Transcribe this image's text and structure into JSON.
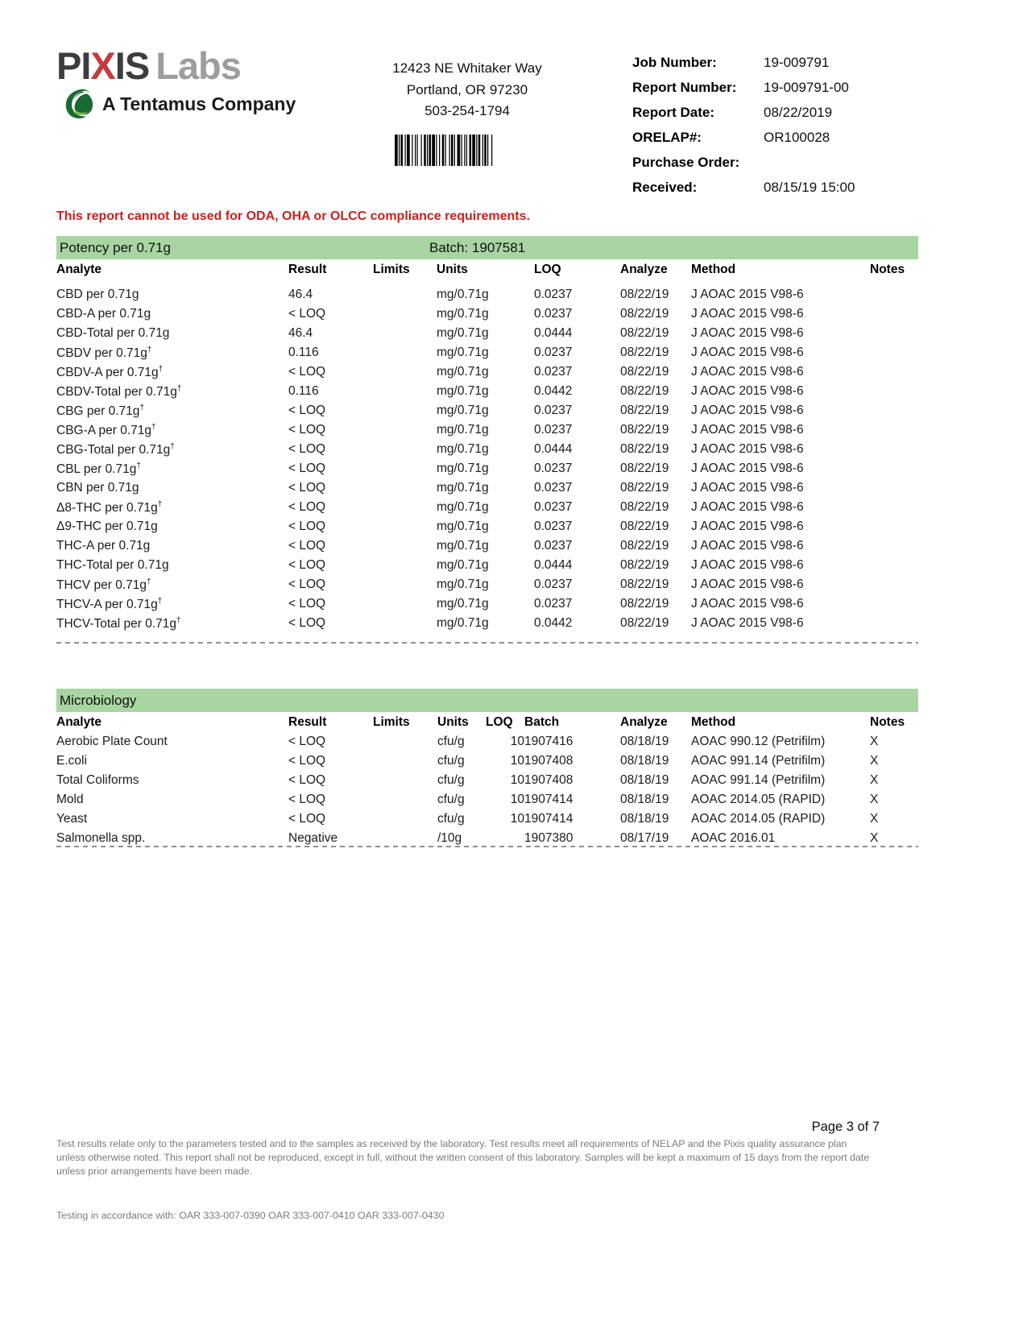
{
  "logo": {
    "brand_pre": "PI",
    "brand_x": "X",
    "brand_post": "IS",
    "brand_labs": "Labs",
    "tagline": "A Tentamus Company"
  },
  "lab_contact": {
    "address_line1": "12423 NE Whitaker Way",
    "address_line2": "Portland, OR 97230",
    "phone": "503-254-1794"
  },
  "report_info": {
    "rows": [
      {
        "label": "Job Number:",
        "value": "19-009791"
      },
      {
        "label": "Report Number:",
        "value": "19-009791-00"
      },
      {
        "label": "Report Date:",
        "value": "08/22/2019"
      },
      {
        "label": "ORELAP#:",
        "value": "OR100028"
      },
      {
        "label": "Purchase Order:",
        "value": ""
      },
      {
        "label": "Received:",
        "value": "08/15/19  15:00"
      }
    ]
  },
  "warning_text": "This report cannot be used for ODA, OHA or OLCC compliance requirements.",
  "potency": {
    "title": "Potency per 0.71g",
    "batch_label": "Batch: 1907581",
    "headers": [
      "Analyte",
      "Result",
      "Limits",
      "Units",
      "LOQ",
      "Analyze",
      "Method",
      "Notes"
    ],
    "rows": [
      [
        "CBD per 0.71g",
        "46.4",
        "",
        "mg/0.71g",
        "0.0237",
        "08/22/19",
        "J AOAC 2015 V98-6",
        ""
      ],
      [
        "CBD-A per 0.71g",
        "< LOQ",
        "",
        "mg/0.71g",
        "0.0237",
        "08/22/19",
        "J AOAC 2015 V98-6",
        ""
      ],
      [
        "CBD-Total per 0.71g",
        "46.4",
        "",
        "mg/0.71g",
        "0.0444",
        "08/22/19",
        "J AOAC 2015 V98-6",
        ""
      ],
      [
        "CBDV per 0.71g†",
        "0.116",
        "",
        "mg/0.71g",
        "0.0237",
        "08/22/19",
        "J AOAC 2015 V98-6",
        ""
      ],
      [
        "CBDV-A per 0.71g†",
        "< LOQ",
        "",
        "mg/0.71g",
        "0.0237",
        "08/22/19",
        "J AOAC 2015 V98-6",
        ""
      ],
      [
        "CBDV-Total per 0.71g†",
        "0.116",
        "",
        "mg/0.71g",
        "0.0442",
        "08/22/19",
        "J AOAC 2015 V98-6",
        ""
      ],
      [
        "CBG per 0.71g†",
        "< LOQ",
        "",
        "mg/0.71g",
        "0.0237",
        "08/22/19",
        "J AOAC 2015 V98-6",
        ""
      ],
      [
        "CBG-A per 0.71g†",
        "< LOQ",
        "",
        "mg/0.71g",
        "0.0237",
        "08/22/19",
        "J AOAC 2015 V98-6",
        ""
      ],
      [
        "CBG-Total per 0.71g†",
        "< LOQ",
        "",
        "mg/0.71g",
        "0.0444",
        "08/22/19",
        "J AOAC 2015 V98-6",
        ""
      ],
      [
        "CBL per 0.71g†",
        "< LOQ",
        "",
        "mg/0.71g",
        "0.0237",
        "08/22/19",
        "J AOAC 2015 V98-6",
        ""
      ],
      [
        "CBN per 0.71g",
        "< LOQ",
        "",
        "mg/0.71g",
        "0.0237",
        "08/22/19",
        "J AOAC 2015 V98-6",
        ""
      ],
      [
        "Δ8-THC per 0.71g†",
        "< LOQ",
        "",
        "mg/0.71g",
        "0.0237",
        "08/22/19",
        "J AOAC 2015 V98-6",
        ""
      ],
      [
        "Δ9-THC per 0.71g",
        "< LOQ",
        "",
        "mg/0.71g",
        "0.0237",
        "08/22/19",
        "J AOAC 2015 V98-6",
        ""
      ],
      [
        "THC-A per 0.71g",
        "< LOQ",
        "",
        "mg/0.71g",
        "0.0237",
        "08/22/19",
        "J AOAC 2015 V98-6",
        ""
      ],
      [
        "THC-Total per 0.71g",
        "< LOQ",
        "",
        "mg/0.71g",
        "0.0444",
        "08/22/19",
        "J AOAC 2015 V98-6",
        ""
      ],
      [
        "THCV per 0.71g†",
        "< LOQ",
        "",
        "mg/0.71g",
        "0.0237",
        "08/22/19",
        "J AOAC 2015 V98-6",
        ""
      ],
      [
        "THCV-A per 0.71g†",
        "< LOQ",
        "",
        "mg/0.71g",
        "0.0237",
        "08/22/19",
        "J AOAC 2015 V98-6",
        ""
      ],
      [
        "THCV-Total per 0.71g†",
        "< LOQ",
        "",
        "mg/0.71g",
        "0.0442",
        "08/22/19",
        "J AOAC 2015 V98-6",
        ""
      ]
    ]
  },
  "microbiology": {
    "title": "Microbiology",
    "headers": [
      "Analyte",
      "Result",
      "Limits",
      "Units",
      "LOQ",
      "Batch",
      "Analyze",
      "Method",
      "Notes"
    ],
    "rows": [
      [
        "Aerobic Plate Count",
        "< LOQ",
        "",
        "cfu/g",
        "10",
        "1907416",
        "08/18/19",
        "AOAC 990.12 (Petrifilm)",
        "X"
      ],
      [
        "E.coli",
        "< LOQ",
        "",
        "cfu/g",
        "10",
        "1907408",
        "08/18/19",
        "AOAC 991.14 (Petrifilm)",
        "X"
      ],
      [
        "Total Coliforms",
        "< LOQ",
        "",
        "cfu/g",
        "10",
        "1907408",
        "08/18/19",
        "AOAC 991.14 (Petrifilm)",
        "X"
      ],
      [
        "Mold",
        "< LOQ",
        "",
        "cfu/g",
        "10",
        "1907414",
        "08/18/19",
        "AOAC 2014.05 (RAPID)",
        "X"
      ],
      [
        "Yeast",
        "< LOQ",
        "",
        "cfu/g",
        "10",
        "1907414",
        "08/18/19",
        "AOAC 2014.05 (RAPID)",
        "X"
      ],
      [
        "Salmonella spp.",
        "Negative",
        "",
        "/10g",
        "",
        "1907380",
        "08/17/19",
        "AOAC 2016.01",
        "X"
      ]
    ]
  },
  "footer": {
    "page_label": "Page 3 of 7",
    "disclaimer": "Test results relate only to the parameters tested and to the samples as received by the laboratory. Test results meet all requirements of NELAP and the Pixis quality assurance plan unless otherwise noted. This report shall not be reproduced, except in full, without the written consent of this laboratory. Samples will be kept a maximum of 15 days from the report date unless prior arrangements have been made.",
    "accordance": "Testing in accordance with: OAR 333-007-0390  OAR 333-007-0410  OAR 333-007-0430"
  },
  "colors": {
    "section_green": "#a8d5a1",
    "warning_red": "#c9211e",
    "logo_red": "#c53a3e",
    "logo_dark": "#3d3d3e",
    "logo_gray": "#9d9d9d",
    "leaf_green": "#1a6a33",
    "leaf_light_green": "#7ab648",
    "footer_gray": "#7a7a7a"
  }
}
